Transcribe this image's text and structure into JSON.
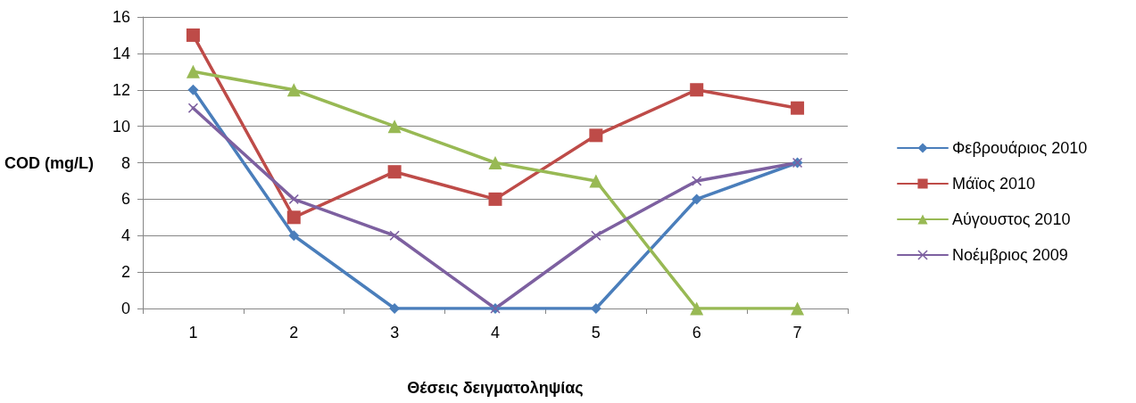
{
  "chart_data": {
    "type": "line",
    "xlabel": "Θέσεις δειγματοληψίας",
    "ylabel": "COD (mg/L)",
    "categories": [
      "1",
      "2",
      "3",
      "4",
      "5",
      "6",
      "7"
    ],
    "series": [
      {
        "name": "Φεβρουάριος 2010",
        "color": "#4a7ebb",
        "marker": "diamond",
        "values": [
          12,
          4,
          0,
          0,
          0,
          6,
          8
        ]
      },
      {
        "name": "Μάϊος 2010",
        "color": "#be4b48",
        "marker": "square",
        "values": [
          15,
          5,
          7.5,
          6,
          9.5,
          12,
          11
        ]
      },
      {
        "name": "Αύγουστος 2010",
        "color": "#98b954",
        "marker": "triangle",
        "values": [
          13,
          12,
          10,
          8,
          7,
          0,
          0
        ]
      },
      {
        "name": "Νοέμβριος 2009",
        "color": "#7d60a0",
        "marker": "cross",
        "values": [
          11,
          6,
          4,
          0,
          4,
          7,
          8
        ]
      }
    ],
    "ylim": [
      0,
      16
    ],
    "yticks": [
      0,
      2,
      4,
      6,
      8,
      10,
      12,
      14,
      16
    ],
    "grid": "y",
    "legend": "right",
    "line_style": "solid"
  }
}
